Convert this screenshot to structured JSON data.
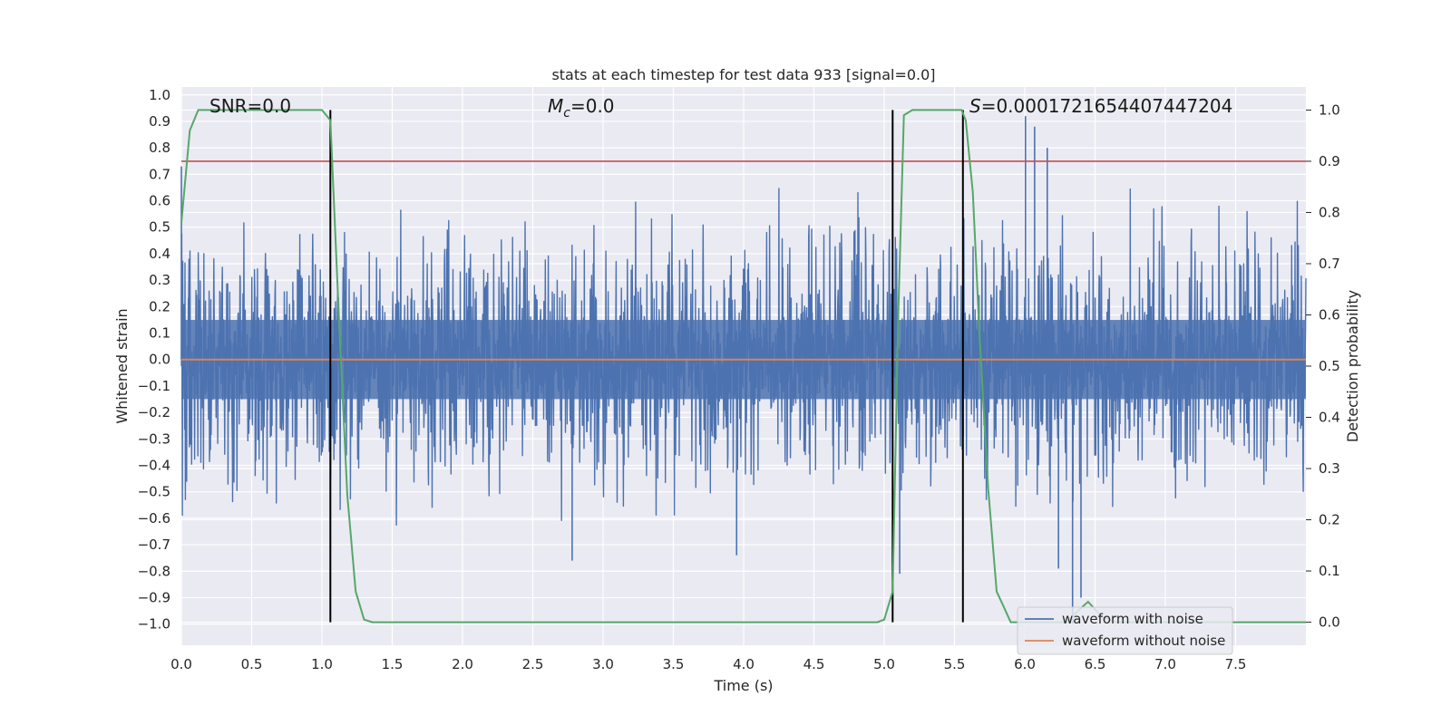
{
  "chart_data": {
    "type": "line",
    "title": "stats at each timestep for test data 933 [signal=0.0]",
    "xlabel": "Time (s)",
    "ylabel": "Whitened strain",
    "y2label": "Detection probability",
    "xlim": [
      0.0,
      8.0
    ],
    "ylim": [
      -1.08,
      1.03
    ],
    "y2lim": [
      -0.045,
      1.045
    ],
    "x_ticks": [
      0.0,
      0.5,
      1.0,
      1.5,
      2.0,
      2.5,
      3.0,
      3.5,
      4.0,
      4.5,
      5.0,
      5.5,
      6.0,
      6.5,
      7.0,
      7.5
    ],
    "x_tick_labels": [
      "0.0",
      "0.5",
      "1.0",
      "1.5",
      "2.0",
      "2.5",
      "3.0",
      "3.5",
      "4.0",
      "4.5",
      "5.0",
      "5.5",
      "6.0",
      "6.5",
      "7.0",
      "7.5"
    ],
    "y_ticks": [
      1.0,
      0.9,
      0.8,
      0.7,
      0.6,
      0.5,
      0.4,
      0.3,
      0.2,
      0.1,
      0.0,
      -0.1,
      -0.2,
      -0.3,
      -0.4,
      -0.5,
      -0.6,
      -0.7,
      -0.8,
      -0.9,
      -1.0
    ],
    "y_tick_labels": [
      "1.0",
      "0.9",
      "0.8",
      "0.7",
      "0.6",
      "0.5",
      "0.4",
      "0.3",
      "0.2",
      "0.1",
      "0.0",
      "−0.1",
      "−0.2",
      "−0.3",
      "−0.4",
      "−0.5",
      "−0.6",
      "−0.7",
      "−0.8",
      "−0.9",
      "−1.0"
    ],
    "y2_ticks": [
      1.0,
      0.9,
      0.8,
      0.7,
      0.6,
      0.5,
      0.4,
      0.3,
      0.2,
      0.1,
      0.0
    ],
    "y2_tick_labels": [
      "1.0",
      "0.9",
      "0.8",
      "0.7",
      "0.6",
      "0.5",
      "0.4",
      "0.3",
      "0.2",
      "0.1",
      "0.0"
    ],
    "annotations": {
      "snr": "SNR=0.0",
      "mc_symbol": "M",
      "mc_sub": "c",
      "mc_value": "=0.0",
      "s_symbol": "S",
      "s_value": "=0.0001721654407447204"
    },
    "threshold_line": {
      "axis": "y2",
      "value": 0.9,
      "color": "#c44e52"
    },
    "vertical_markers": {
      "x": [
        1.06,
        5.06,
        5.56
      ],
      "y2_range": [
        0.0,
        1.0
      ],
      "color": "#000000"
    },
    "series": [
      {
        "name": "waveform with noise",
        "axis": "y",
        "color": "#4c72b0",
        "style": "noise",
        "x_range": [
          0.0,
          8.0
        ],
        "core_amplitude": 0.13,
        "spike_max": 0.72,
        "spike_min": -0.74,
        "outliers": [
          {
            "x": 6.005,
            "y": 0.92
          },
          {
            "x": 6.07,
            "y": 0.88
          },
          {
            "x": 6.16,
            "y": 0.8
          },
          {
            "x": 6.34,
            "y": -1.0
          },
          {
            "x": 6.4,
            "y": -0.9
          },
          {
            "x": 2.78,
            "y": -0.76
          },
          {
            "x": 3.95,
            "y": -0.74
          },
          {
            "x": 5.11,
            "y": -0.81
          },
          {
            "x": 6.24,
            "y": -0.79
          },
          {
            "x": 0.0,
            "y": 0.73
          }
        ]
      },
      {
        "name": "waveform without noise",
        "axis": "y",
        "color": "#dd8452",
        "points": [
          [
            0.0,
            0.0
          ],
          [
            8.0,
            0.0
          ]
        ]
      },
      {
        "name": "detection probability",
        "axis": "y2",
        "color": "#55a868",
        "points": [
          [
            0.0,
            0.78
          ],
          [
            0.06,
            0.96
          ],
          [
            0.12,
            1.0
          ],
          [
            0.5,
            1.0
          ],
          [
            1.0,
            1.0
          ],
          [
            1.06,
            0.98
          ],
          [
            1.12,
            0.6
          ],
          [
            1.18,
            0.25
          ],
          [
            1.24,
            0.06
          ],
          [
            1.3,
            0.005
          ],
          [
            1.36,
            0.0
          ],
          [
            4.95,
            0.0
          ],
          [
            5.0,
            0.005
          ],
          [
            5.06,
            0.06
          ],
          [
            5.1,
            0.6
          ],
          [
            5.14,
            0.99
          ],
          [
            5.2,
            1.0
          ],
          [
            5.55,
            1.0
          ],
          [
            5.58,
            0.98
          ],
          [
            5.63,
            0.84
          ],
          [
            5.68,
            0.55
          ],
          [
            5.74,
            0.26
          ],
          [
            5.8,
            0.06
          ],
          [
            5.85,
            0.03
          ],
          [
            5.9,
            0.0
          ],
          [
            6.3,
            0.0
          ],
          [
            6.37,
            0.02
          ],
          [
            6.45,
            0.04
          ],
          [
            6.55,
            0.01
          ],
          [
            6.65,
            0.0
          ],
          [
            8.0,
            0.0
          ]
        ]
      }
    ],
    "legend": {
      "placement": "lower-right",
      "items": [
        {
          "label": "waveform with noise",
          "color": "#4c72b0"
        },
        {
          "label": "waveform without noise",
          "color": "#dd8452"
        }
      ]
    }
  }
}
